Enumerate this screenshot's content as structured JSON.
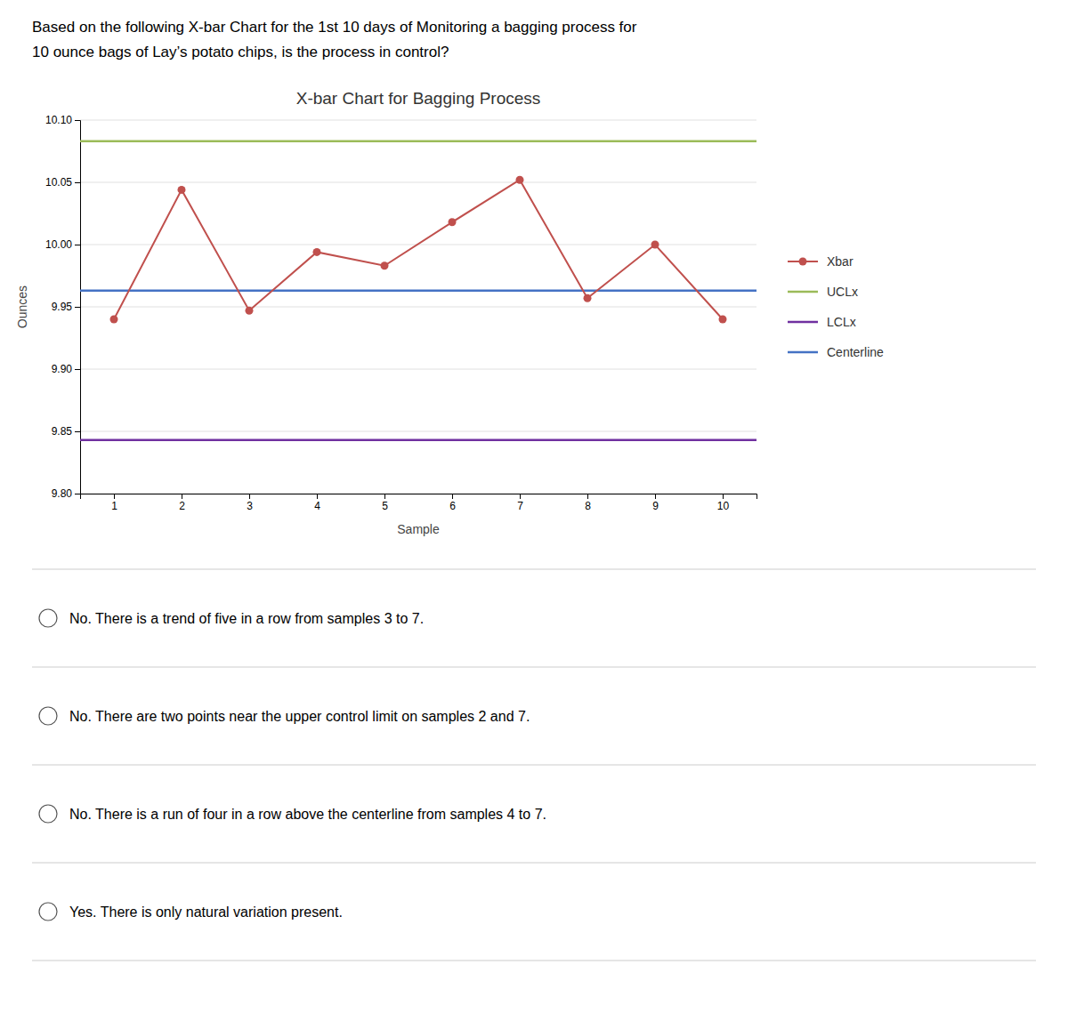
{
  "question_text": [
    "Based on the following X-bar Chart for the 1st 10 days of Monitoring a bagging process for",
    "10 ounce bags of Lay’s potato chips, is the process in control?"
  ],
  "answer_options": [
    "No. There is a trend of five in a row from samples 3 to 7.",
    "No. There are two points near the upper control limit on samples 2 and 7.",
    "No. There is a run of four in a row above the centerline from samples 4 to 7.",
    "Yes. There is only natural variation present."
  ],
  "chart_data": {
    "type": "line",
    "title": "X-bar Chart for Bagging Process",
    "x_label": "Sample",
    "y_label": "Ounces",
    "x": [
      1,
      2,
      3,
      4,
      5,
      6,
      7,
      8,
      9,
      10
    ],
    "series": [
      {
        "name": "Xbar",
        "type": "line",
        "color": "#C0504D",
        "marker": "circle",
        "values": [
          9.94,
          10.044,
          9.947,
          9.994,
          9.983,
          10.018,
          10.052,
          9.957,
          10.0,
          9.94
        ]
      },
      {
        "name": "UCLx",
        "type": "hline",
        "color": "#9BBB59",
        "value": 10.083
      },
      {
        "name": "LCLx",
        "type": "hline",
        "color": "#7030A0",
        "value": 9.843
      },
      {
        "name": "Centerline",
        "type": "hline",
        "color": "#4472C4",
        "value": 9.963
      }
    ],
    "xlim": [
      0.5,
      10.5
    ],
    "xticks": [
      1,
      2,
      3,
      4,
      5,
      6,
      7,
      8,
      9,
      10
    ],
    "ylim": [
      9.8,
      10.1
    ],
    "yticks": [
      {
        "value": 9.8,
        "label": "9.80"
      },
      9.85,
      {
        "value": 9.9,
        "label": "9.90"
      },
      9.95,
      {
        "value": 10.0,
        "label": "10.00"
      },
      10.05,
      {
        "value": 10.1,
        "label": "10.10"
      }
    ],
    "grid": true,
    "legend": "right"
  }
}
